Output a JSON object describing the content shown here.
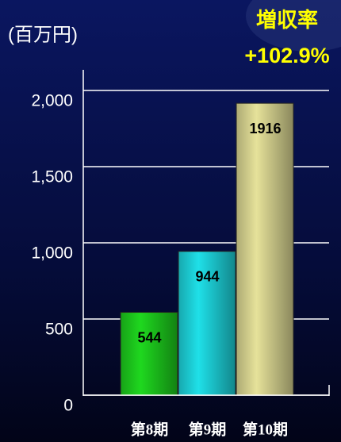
{
  "chart_data": {
    "type": "bar",
    "unit_label": "(百万円)",
    "annotation_title": "増収率",
    "annotation_value": "+102.9%",
    "categories": [
      "第8期",
      "第9期",
      "第10期"
    ],
    "values": [
      544,
      944,
      1916
    ],
    "colors": [
      "#1fd81f",
      "#1fe0e8",
      "#e6e29a"
    ],
    "ylim": [
      0,
      2000
    ],
    "yticks": [
      0,
      500,
      {
        "value": 1000,
        "label": "1,000"
      },
      {
        "value": 1500,
        "label": "1,500"
      },
      {
        "value": 2000,
        "label": "2,000"
      }
    ],
    "grid": true
  }
}
